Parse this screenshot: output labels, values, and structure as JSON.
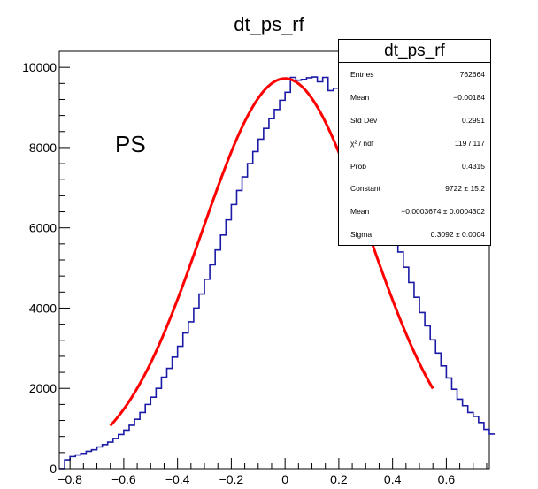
{
  "chart_data": {
    "type": "histogram",
    "title": "dt_ps_rf",
    "annotation": "PS",
    "xlim": [
      -0.84,
      0.76
    ],
    "ylim": [
      0,
      10400
    ],
    "x_ticks": [
      -0.8,
      -0.6,
      -0.4,
      -0.2,
      0,
      0.2,
      0.4,
      0.6
    ],
    "x_tick_labels": [
      "−0.8",
      "−0.6",
      "−0.4",
      "−0.2",
      "0",
      "0.2",
      "0.4",
      "0.6"
    ],
    "y_ticks": [
      0,
      2000,
      4000,
      6000,
      8000,
      10000
    ],
    "y_tick_labels": [
      "0",
      "2000",
      "4000",
      "6000",
      "8000",
      "10000"
    ],
    "colors": {
      "histogram": "#1a1aa6",
      "fit": "#ff0000",
      "axis": "#000000"
    },
    "histogram": {
      "bin_width": 0.02,
      "x_start": -0.84,
      "counts": [
        2,
        220,
        300,
        340,
        380,
        430,
        470,
        540,
        600,
        660,
        750,
        850,
        960,
        1080,
        1230,
        1400,
        1600,
        1780,
        2000,
        2280,
        2500,
        2780,
        3050,
        3380,
        3660,
        4000,
        4350,
        4720,
        5080,
        5450,
        5820,
        6200,
        6580,
        6930,
        7270,
        7600,
        7900,
        8210,
        8480,
        8720,
        8950,
        9180,
        9380,
        9750,
        9680,
        9700,
        9740,
        9760,
        9640,
        9750,
        9420,
        9480,
        9220,
        8960,
        8720,
        8230,
        8020,
        7590,
        7280,
        6930,
        6550,
        6160,
        5780,
        5400,
        5020,
        4640,
        4270,
        3890,
        3560,
        3210,
        2880,
        2560,
        2260,
        1980,
        1730,
        1570,
        1400,
        1300,
        1150,
        980,
        860
      ]
    },
    "fit": {
      "function": "gaus",
      "x_range": [
        -0.65,
        0.55
      ],
      "constant": 9722,
      "mean": -0.0003674,
      "sigma": 0.3092
    }
  },
  "stats_box": {
    "title": "dt_ps_rf",
    "rows": [
      {
        "label": "Entries",
        "value": "762664"
      },
      {
        "label": "Mean",
        "value": "−0.00184"
      },
      {
        "label": "Std Dev",
        "value": "0.2991"
      },
      {
        "label": "χ² / ndf",
        "value": "119 / 117"
      },
      {
        "label": "Prob",
        "value": "0.4315"
      },
      {
        "label": "Constant",
        "value": "9722 ± 15.2"
      },
      {
        "label": "Mean",
        "value": "−0.0003674 ± 0.0004302"
      },
      {
        "label": "Sigma",
        "value": "0.3092 ± 0.0004"
      }
    ]
  }
}
